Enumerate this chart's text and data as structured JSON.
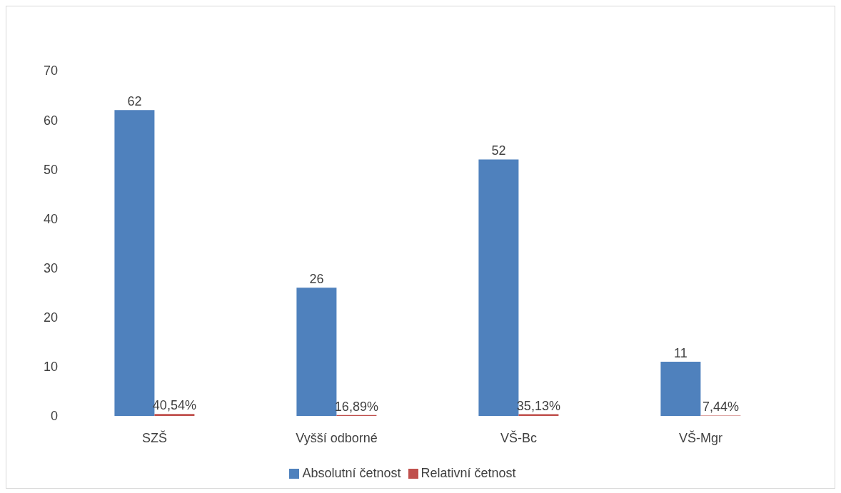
{
  "chart_data": {
    "type": "bar",
    "categories": [
      "SZŠ",
      "Vyšší odborné",
      "VŠ-Bc",
      "VŠ-Mgr"
    ],
    "series": [
      {
        "name": "Absolutní četnost",
        "color": "#4f81bd",
        "values": [
          62,
          26,
          52,
          11
        ],
        "value_labels": [
          "62",
          "26",
          "52",
          "11"
        ]
      },
      {
        "name": "Relativní četnost",
        "color": "#c0504d",
        "values": [
          0.4054,
          0.1689,
          0.3513,
          0.0744
        ],
        "value_labels": [
          "40,54%",
          "16,89%",
          "35,13%",
          "7,44%"
        ]
      }
    ],
    "ylim": [
      0,
      70
    ],
    "yticks": [
      0,
      10,
      20,
      30,
      40,
      50,
      60,
      70
    ],
    "grid": false,
    "legend": "bottom"
  }
}
